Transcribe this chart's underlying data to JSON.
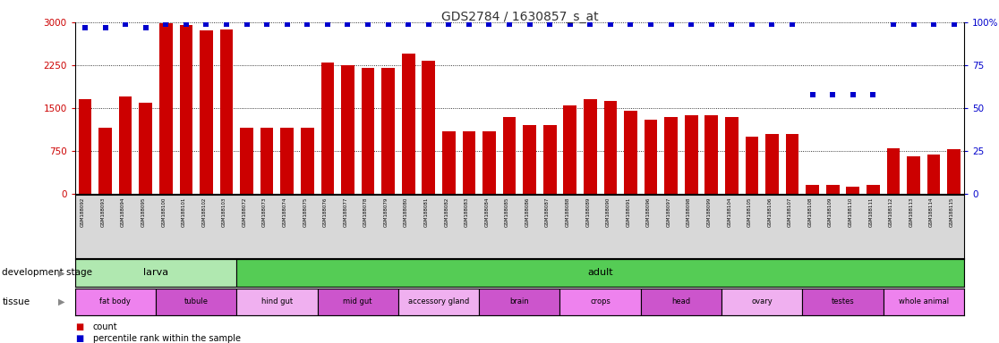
{
  "title": "GDS2784 / 1630857_s_at",
  "samples": [
    "GSM188092",
    "GSM188093",
    "GSM188094",
    "GSM188095",
    "GSM188100",
    "GSM188101",
    "GSM188102",
    "GSM188103",
    "GSM188072",
    "GSM188073",
    "GSM188074",
    "GSM188075",
    "GSM188076",
    "GSM188077",
    "GSM188078",
    "GSM188079",
    "GSM188080",
    "GSM188081",
    "GSM188082",
    "GSM188083",
    "GSM188084",
    "GSM188085",
    "GSM188086",
    "GSM188087",
    "GSM188088",
    "GSM188089",
    "GSM188090",
    "GSM188091",
    "GSM188096",
    "GSM188097",
    "GSM188098",
    "GSM188099",
    "GSM188104",
    "GSM188105",
    "GSM188106",
    "GSM188107",
    "GSM188108",
    "GSM188109",
    "GSM188110",
    "GSM188111",
    "GSM188112",
    "GSM188113",
    "GSM188114",
    "GSM188115"
  ],
  "counts": [
    1650,
    1150,
    1700,
    1600,
    2980,
    2960,
    2860,
    2870,
    1150,
    1150,
    1150,
    1150,
    2300,
    2250,
    2200,
    2200,
    2460,
    2330,
    1100,
    1100,
    1100,
    1350,
    1200,
    1200,
    1550,
    1650,
    1620,
    1460,
    1300,
    1350,
    1380,
    1380,
    1350,
    1000,
    1050,
    1050,
    150,
    150,
    130,
    150,
    800,
    650,
    680,
    780
  ],
  "percentile": [
    97,
    97,
    99,
    97,
    99,
    99,
    99,
    99,
    99,
    99,
    99,
    99,
    99,
    99,
    99,
    99,
    99,
    99,
    99,
    99,
    99,
    99,
    99,
    99,
    99,
    99,
    99,
    99,
    99,
    99,
    99,
    99,
    99,
    99,
    99,
    99,
    58,
    58,
    58,
    58,
    99,
    99,
    99,
    99
  ],
  "development_stages": [
    {
      "label": "larva",
      "start": 0,
      "end": 7,
      "color": "#b0e8b0"
    },
    {
      "label": "adult",
      "start": 8,
      "end": 43,
      "color": "#55cc55"
    }
  ],
  "tissues": [
    {
      "label": "fat body",
      "start": 0,
      "end": 3,
      "color": "#ee82ee"
    },
    {
      "label": "tubule",
      "start": 4,
      "end": 7,
      "color": "#cc55cc"
    },
    {
      "label": "hind gut",
      "start": 8,
      "end": 11,
      "color": "#f0b0f0"
    },
    {
      "label": "mid gut",
      "start": 12,
      "end": 15,
      "color": "#cc55cc"
    },
    {
      "label": "accessory gland",
      "start": 16,
      "end": 19,
      "color": "#f0b0f0"
    },
    {
      "label": "brain",
      "start": 20,
      "end": 23,
      "color": "#cc55cc"
    },
    {
      "label": "crops",
      "start": 24,
      "end": 27,
      "color": "#ee82ee"
    },
    {
      "label": "head",
      "start": 28,
      "end": 31,
      "color": "#cc55cc"
    },
    {
      "label": "ovary",
      "start": 32,
      "end": 35,
      "color": "#f0b0f0"
    },
    {
      "label": "testes",
      "start": 36,
      "end": 39,
      "color": "#cc55cc"
    },
    {
      "label": "whole animal",
      "start": 40,
      "end": 43,
      "color": "#ee82ee"
    }
  ],
  "bar_color": "#cc0000",
  "dot_color": "#0000cc",
  "ylim_left": [
    0,
    3000
  ],
  "ylim_right": [
    0,
    100
  ],
  "yticks_left": [
    0,
    750,
    1500,
    2250,
    3000
  ],
  "yticks_right": [
    0,
    25,
    50,
    75,
    100
  ],
  "left_tick_color": "#cc0000",
  "right_tick_color": "#0000cc",
  "bg_color": "#ffffff",
  "xticklabel_bg": "#d8d8d8",
  "title_color": "#333333",
  "title_fontsize": 10
}
